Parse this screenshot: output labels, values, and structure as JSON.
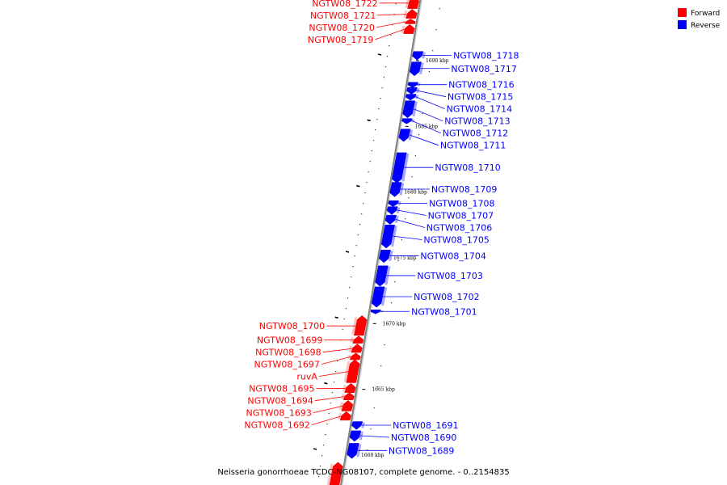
{
  "colors": {
    "forward": "#ff0000",
    "reverse": "#0000ff",
    "axis": "#808080"
  },
  "legend": [
    {
      "name": "Forward",
      "color": "#ff0000"
    },
    {
      "name": "Reverse",
      "color": "#0000ff"
    }
  ],
  "caption": "Neisseria gonorrhoeae TCDC-NG08107, complete genome. - 0..2154835",
  "ticks": [
    {
      "kbp": 1660,
      "label": "1660 kbp"
    },
    {
      "kbp": 1665,
      "label": "1665 kbp"
    },
    {
      "kbp": 1670,
      "label": "1670 kbp"
    },
    {
      "kbp": 1675,
      "label": "1675 kbp"
    },
    {
      "kbp": 1680,
      "label": "1680 kbp"
    },
    {
      "kbp": 1685,
      "label": "1685 kbp"
    },
    {
      "kbp": 1690,
      "label": "1690 kbp"
    }
  ],
  "genes": [
    {
      "name": "NGTW08_1722",
      "strand": "forward",
      "start_kbp": 1693.95,
      "end_kbp": 1694.8
    },
    {
      "name": "NGTW08_1721",
      "strand": "forward",
      "start_kbp": 1693.2,
      "end_kbp": 1693.85
    },
    {
      "name": "NGTW08_1720",
      "strand": "forward",
      "start_kbp": 1692.8,
      "end_kbp": 1693.1
    },
    {
      "name": "NGTW08_1719",
      "strand": "forward",
      "start_kbp": 1692.05,
      "end_kbp": 1692.7
    },
    {
      "name": "NGTW08_1718",
      "strand": "reverse",
      "start_kbp": 1690.1,
      "end_kbp": 1690.7
    },
    {
      "name": "NGTW08_1717",
      "strand": "reverse",
      "start_kbp": 1688.9,
      "end_kbp": 1689.9
    },
    {
      "name": "NGTW08_1716",
      "strand": "reverse",
      "start_kbp": 1688.0,
      "end_kbp": 1688.35
    },
    {
      "name": "NGTW08_1715",
      "strand": "reverse",
      "start_kbp": 1687.5,
      "end_kbp": 1687.95
    },
    {
      "name": "NGTW08_1714",
      "strand": "reverse",
      "start_kbp": 1687.05,
      "end_kbp": 1687.45
    },
    {
      "name": "NGTW08_1713",
      "strand": "reverse",
      "start_kbp": 1685.7,
      "end_kbp": 1686.95
    },
    {
      "name": "NGTW08_1712",
      "strand": "reverse",
      "start_kbp": 1685.25,
      "end_kbp": 1685.6
    },
    {
      "name": "NGTW08_1711",
      "strand": "reverse",
      "start_kbp": 1683.9,
      "end_kbp": 1684.8
    },
    {
      "name": "NGTW08_1710",
      "strand": "reverse",
      "start_kbp": 1680.75,
      "end_kbp": 1683.0
    },
    {
      "name": "NGTW08_1709",
      "strand": "reverse",
      "start_kbp": 1679.7,
      "end_kbp": 1680.75
    },
    {
      "name": "NGTW08_1708",
      "strand": "reverse",
      "start_kbp": 1678.95,
      "end_kbp": 1679.35
    },
    {
      "name": "NGTW08_1707",
      "strand": "reverse",
      "start_kbp": 1678.35,
      "end_kbp": 1678.9
    },
    {
      "name": "NGTW08_1706",
      "strand": "reverse",
      "start_kbp": 1677.6,
      "end_kbp": 1678.25
    },
    {
      "name": "NGTW08_1705",
      "strand": "reverse",
      "start_kbp": 1675.8,
      "end_kbp": 1677.5
    },
    {
      "name": "NGTW08_1704",
      "strand": "reverse",
      "start_kbp": 1674.7,
      "end_kbp": 1675.6
    },
    {
      "name": "NGTW08_1703",
      "strand": "reverse",
      "start_kbp": 1672.9,
      "end_kbp": 1674.4
    },
    {
      "name": "NGTW08_1702",
      "strand": "reverse",
      "start_kbp": 1671.3,
      "end_kbp": 1672.8
    },
    {
      "name": "NGTW08_1701",
      "strand": "reverse",
      "start_kbp": 1670.8,
      "end_kbp": 1671.05
    },
    {
      "name": "NGTW08_1700",
      "strand": "forward",
      "start_kbp": 1669.1,
      "end_kbp": 1670.55
    },
    {
      "name": "NGTW08_1699",
      "strand": "forward",
      "start_kbp": 1668.5,
      "end_kbp": 1669.0
    },
    {
      "name": "NGTW08_1698",
      "strand": "forward",
      "start_kbp": 1667.8,
      "end_kbp": 1668.4
    },
    {
      "name": "NGTW08_1697",
      "strand": "forward",
      "start_kbp": 1667.25,
      "end_kbp": 1667.7
    },
    {
      "name": "ruvA",
      "strand": "forward",
      "start_kbp": 1665.5,
      "end_kbp": 1667.2
    },
    {
      "name": "NGTW08_1695",
      "strand": "forward",
      "start_kbp": 1664.75,
      "end_kbp": 1665.4
    },
    {
      "name": "NGTW08_1694",
      "strand": "forward",
      "start_kbp": 1664.2,
      "end_kbp": 1664.7
    },
    {
      "name": "NGTW08_1693",
      "strand": "forward",
      "start_kbp": 1663.35,
      "end_kbp": 1664.1
    },
    {
      "name": "NGTW08_1692",
      "strand": "forward",
      "start_kbp": 1662.65,
      "end_kbp": 1663.25
    },
    {
      "name": "NGTW08_1691",
      "strand": "reverse",
      "start_kbp": 1662.0,
      "end_kbp": 1662.55
    },
    {
      "name": "NGTW08_1690",
      "strand": "reverse",
      "start_kbp": 1661.1,
      "end_kbp": 1661.85
    },
    {
      "name": "NGTW08_1689",
      "strand": "reverse",
      "start_kbp": 1659.8,
      "end_kbp": 1660.9
    },
    {
      "name": "",
      "strand": "forward",
      "start_kbp": 1657.5,
      "end_kbp": 1659.4
    }
  ]
}
